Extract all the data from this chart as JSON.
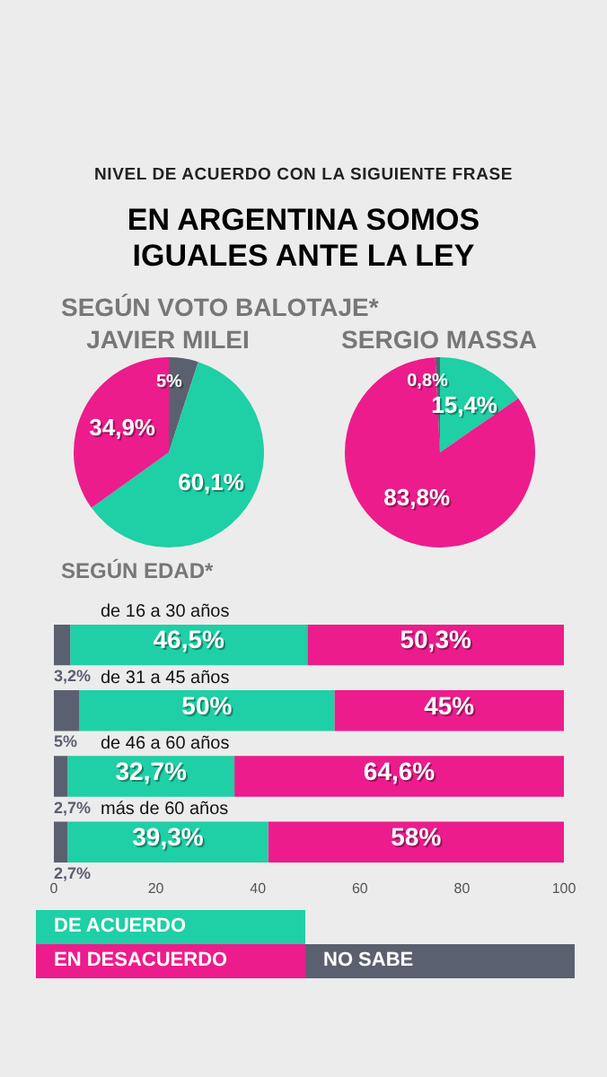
{
  "chart_data": [
    {
      "type": "pie",
      "title": "JAVIER MILEI",
      "annotations": [
        "NIVEL DE ACUERDO CON LA SIGUIENTE FRASE",
        "EN ARGENTINA SOMOS IGUALES ANTE LA LEY",
        "SEGÚN VOTO BALOTAJE*"
      ],
      "categories": [
        null,
        null,
        null
      ],
      "values": [
        5,
        60.1,
        34.9
      ],
      "colors": [
        "#5b6070",
        "#1fcfa5",
        "#ec1c8c"
      ],
      "value_labels": [
        "5%",
        "60,1%",
        "34,9%"
      ],
      "legend": false
    },
    {
      "type": "pie",
      "title": "SERGIO MASSA",
      "categories": [
        null,
        null,
        null
      ],
      "values": [
        15.4,
        83.8,
        0.8
      ],
      "colors": [
        "#1fcfa5",
        "#ec1c8c",
        "#5b6070"
      ],
      "value_labels": [
        "15,4%",
        "83,8%",
        "0,8%"
      ],
      "legend": false
    },
    {
      "type": "bar",
      "orientation": "horizontal",
      "stacked": true,
      "title": "SEGÚN EDAD*",
      "categories": [
        "de 16 a 30 años",
        "de 31 a 45 años",
        "de 46 a 60 años",
        "más de 60 años"
      ],
      "series": [
        {
          "name": "NO SABE",
          "color": "#5b6070",
          "values": [
            3.2,
            5,
            2.7,
            2.7
          ],
          "value_labels": [
            "3,2%",
            "5%",
            "2,7%",
            "2,7%"
          ]
        },
        {
          "name": "DE ACUERDO",
          "color": "#1fcfa5",
          "values": [
            46.5,
            50,
            32.7,
            39.3
          ],
          "value_labels": [
            "46,5%",
            "50%",
            "32,7%",
            "39,3%"
          ]
        },
        {
          "name": "EN DESACUERDO",
          "color": "#ec1c8c",
          "values": [
            50.3,
            45,
            64.6,
            58
          ],
          "value_labels": [
            "50,3%",
            "45%",
            "64,6%",
            "58%"
          ]
        }
      ],
      "xlim": [
        0,
        100
      ],
      "xticks": [
        0,
        20,
        40,
        60,
        80,
        100
      ],
      "grid": false,
      "legend": "bottom"
    }
  ]
}
